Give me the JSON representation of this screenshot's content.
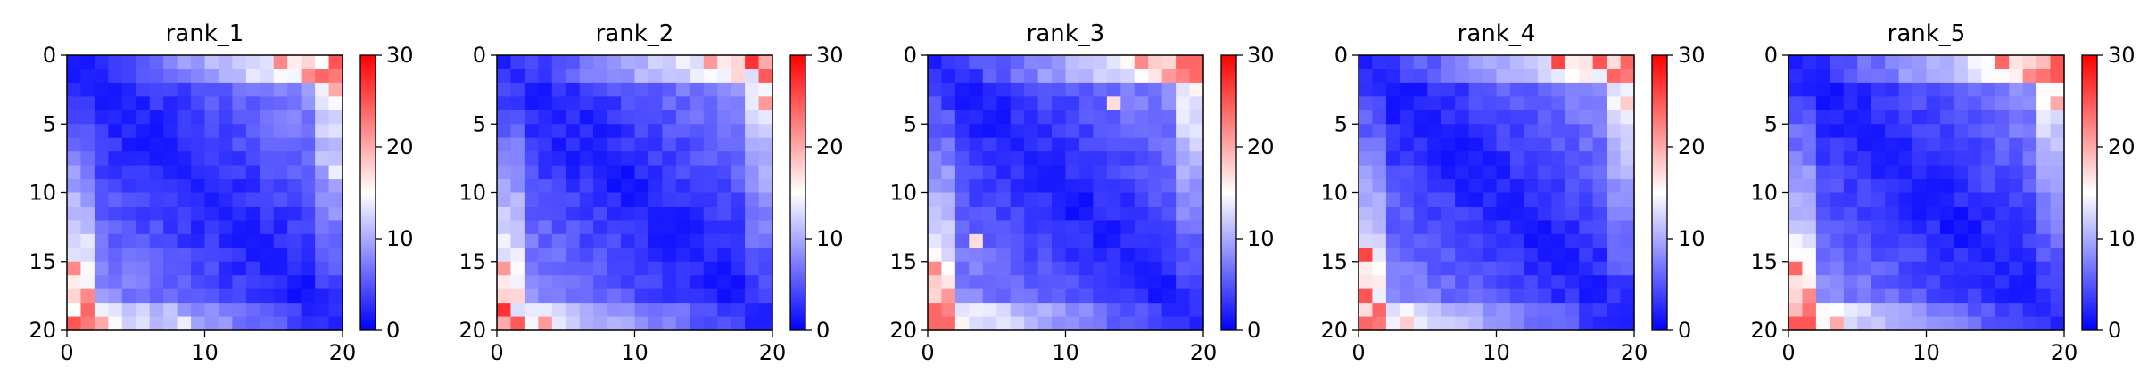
{
  "chart_data": [
    {
      "type": "heatmap",
      "title": "rank_1",
      "size": 20,
      "xlim": [
        0,
        20
      ],
      "ylim": [
        20,
        0
      ],
      "xticks": [
        0,
        10,
        20
      ],
      "yticks": [
        0,
        5,
        10,
        15,
        20
      ],
      "colorbar": {
        "cmap": "bwr",
        "range": [
          0,
          30
        ],
        "ticks": [
          0,
          10,
          20,
          30
        ]
      },
      "values": {
        "diag_min": 1.5,
        "pairs": [
          [
            0,
            18,
            26
          ],
          [
            0,
            15,
            22
          ],
          [
            1,
            17,
            22
          ],
          [
            19,
            0,
            25
          ],
          [
            19,
            2,
            20
          ],
          [
            18,
            0,
            15
          ],
          [
            19,
            8,
            14
          ]
        ]
      }
    },
    {
      "type": "heatmap",
      "title": "rank_2",
      "size": 20,
      "xlim": [
        0,
        20
      ],
      "ylim": [
        20,
        0
      ],
      "xticks": [
        0,
        10,
        20
      ],
      "yticks": [
        0,
        5,
        10,
        15,
        20
      ],
      "colorbar": {
        "cmap": "bwr",
        "range": [
          0,
          30
        ],
        "ticks": [
          0,
          10,
          20,
          30
        ]
      },
      "values": {
        "diag_min": 1.5,
        "pairs": [
          [
            0,
            18,
            27
          ],
          [
            0,
            15,
            21
          ],
          [
            1,
            18,
            24
          ],
          [
            19,
            0,
            20
          ],
          [
            19,
            3,
            21
          ],
          [
            18,
            1,
            13
          ]
        ]
      }
    },
    {
      "type": "heatmap",
      "title": "rank_3",
      "size": 20,
      "xlim": [
        0,
        20
      ],
      "ylim": [
        20,
        0
      ],
      "xticks": [
        0,
        10,
        20
      ],
      "yticks": [
        0,
        5,
        10,
        15,
        20
      ],
      "colorbar": {
        "cmap": "bwr",
        "range": [
          0,
          30
        ],
        "ticks": [
          0,
          10,
          20,
          30
        ]
      },
      "values": {
        "diag_min": 1.5,
        "pairs": [
          [
            0,
            15,
            22
          ],
          [
            0,
            18,
            24
          ],
          [
            1,
            17,
            21
          ],
          [
            19,
            0,
            24
          ],
          [
            16,
            0,
            18
          ],
          [
            18,
            3,
            14
          ],
          [
            13,
            3,
            17
          ]
        ]
      }
    },
    {
      "type": "heatmap",
      "title": "rank_4",
      "size": 20,
      "xlim": [
        0,
        20
      ],
      "ylim": [
        20,
        0
      ],
      "xticks": [
        0,
        10,
        20
      ],
      "yticks": [
        0,
        5,
        10,
        15,
        20
      ],
      "colorbar": {
        "cmap": "bwr",
        "range": [
          0,
          30
        ],
        "ticks": [
          0,
          10,
          20,
          30
        ]
      },
      "values": {
        "diag_min": 1.5,
        "pairs": [
          [
            0,
            14,
            26
          ],
          [
            0,
            17,
            25
          ],
          [
            1,
            19,
            23
          ],
          [
            19,
            0,
            24
          ],
          [
            18,
            0,
            17
          ],
          [
            19,
            3,
            18
          ],
          [
            17,
            1,
            14
          ]
        ]
      }
    },
    {
      "type": "heatmap",
      "title": "rank_5",
      "size": 20,
      "xlim": [
        0,
        20
      ],
      "ylim": [
        20,
        0
      ],
      "xticks": [
        0,
        10,
        20
      ],
      "yticks": [
        0,
        5,
        10,
        15,
        20
      ],
      "colorbar": {
        "cmap": "bwr",
        "range": [
          0,
          30
        ],
        "ticks": [
          0,
          10,
          20,
          30
        ]
      },
      "values": {
        "diag_min": 1.5,
        "pairs": [
          [
            0,
            15,
            24
          ],
          [
            0,
            18,
            26
          ],
          [
            1,
            17,
            22
          ],
          [
            19,
            0,
            25
          ],
          [
            18,
            0,
            19
          ],
          [
            19,
            3,
            20
          ],
          [
            18,
            3,
            15
          ]
        ]
      }
    }
  ]
}
